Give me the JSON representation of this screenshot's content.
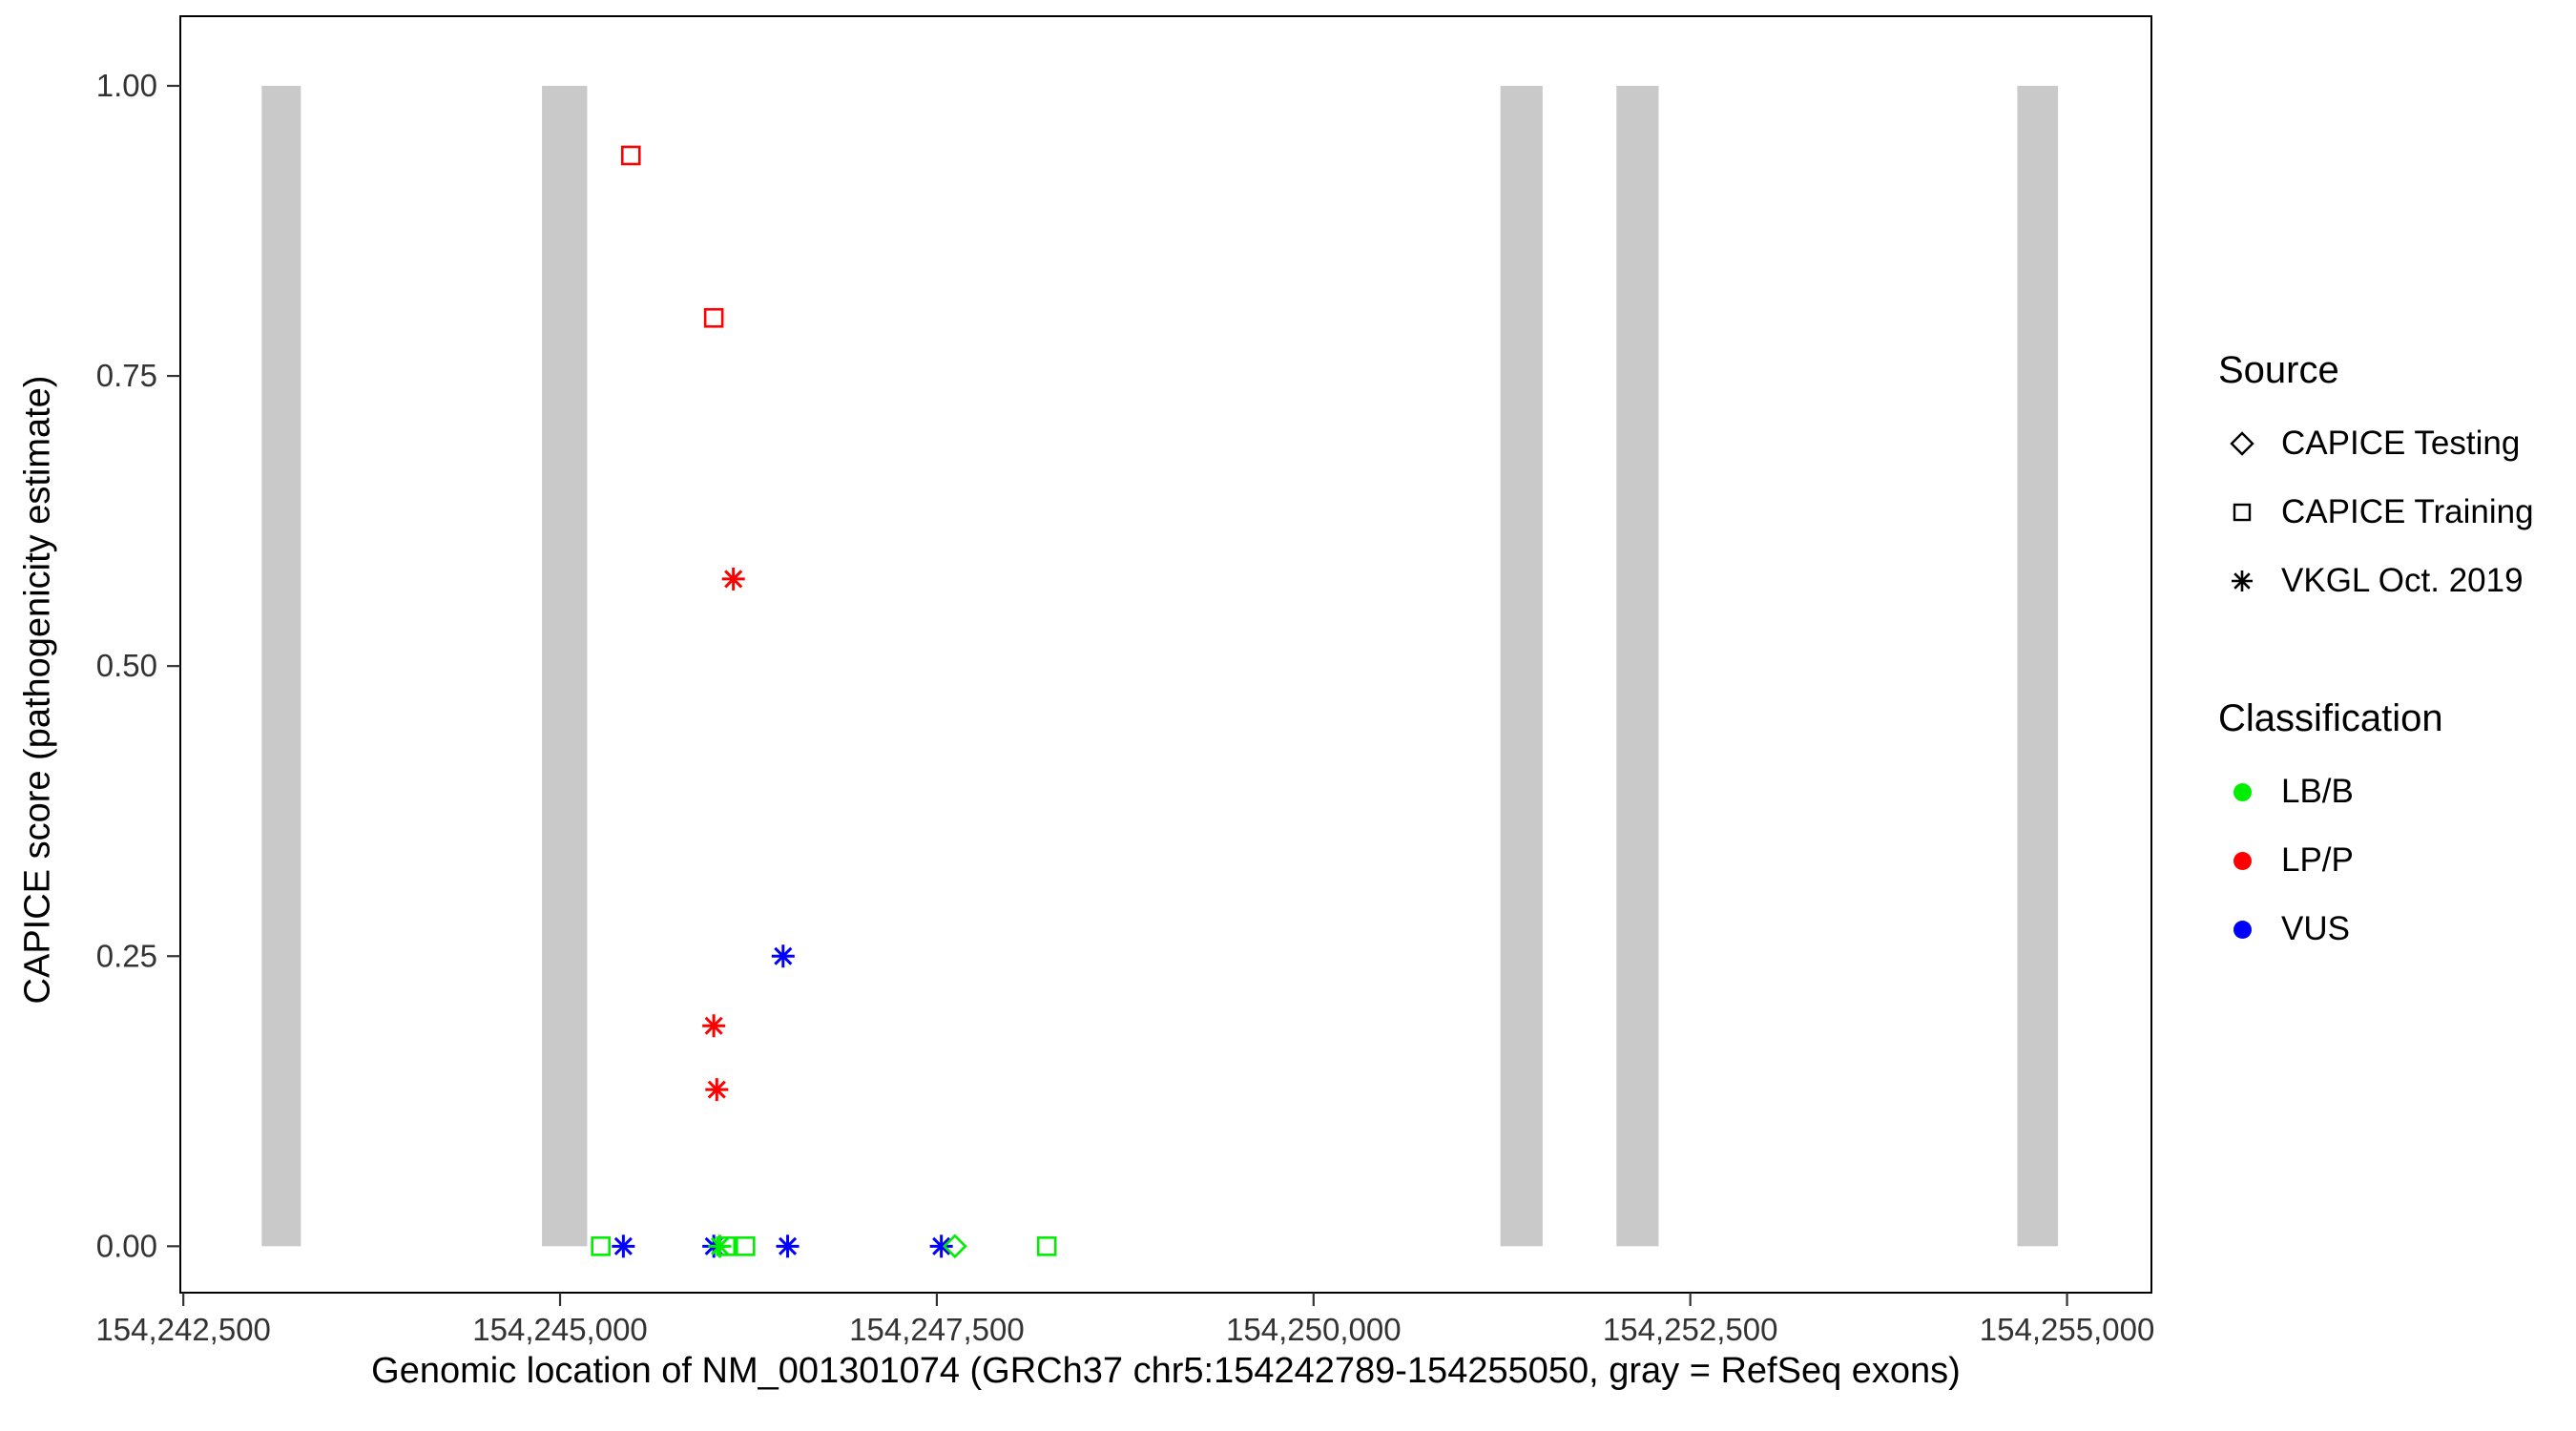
{
  "chart_data": {
    "type": "scatter",
    "title": "",
    "xlabel": "Genomic location of NM_001301074 (GRCh37 chr5:154242789-154255050, gray = RefSeq exons)",
    "ylabel": "CAPICE score (pathogenicity estimate)",
    "xlim": [
      154242480,
      154255560
    ],
    "ylim": [
      -0.04,
      1.06
    ],
    "grid": false,
    "legend_position": "right",
    "exon_color": "#C9C9C9",
    "panel_border_color": "#000000",
    "tick_label_color": "#333333",
    "x_ticks": [
      {
        "value": 154242500,
        "label": "154,242,500"
      },
      {
        "value": 154245000,
        "label": "154,245,000"
      },
      {
        "value": 154247500,
        "label": "154,247,500"
      },
      {
        "value": 154250000,
        "label": "154,250,000"
      },
      {
        "value": 154252500,
        "label": "154,252,500"
      },
      {
        "value": 154255000,
        "label": "154,255,000"
      }
    ],
    "y_ticks": [
      {
        "value": 0.0,
        "label": "0.00"
      },
      {
        "value": 0.25,
        "label": "0.25"
      },
      {
        "value": 0.5,
        "label": "0.50"
      },
      {
        "value": 0.75,
        "label": "0.75"
      },
      {
        "value": 1.0,
        "label": "1.00"
      }
    ],
    "exons": [
      {
        "start": 154243020,
        "end": 154243280
      },
      {
        "start": 154244880,
        "end": 154245180
      },
      {
        "start": 154251240,
        "end": 154251520
      },
      {
        "start": 154252010,
        "end": 154252290
      },
      {
        "start": 154254670,
        "end": 154254940
      }
    ],
    "points": [
      {
        "x": 154245470,
        "y": 0.94,
        "source": "CAPICE Training",
        "classification": "LP/P"
      },
      {
        "x": 154246020,
        "y": 0.8,
        "source": "CAPICE Training",
        "classification": "LP/P"
      },
      {
        "x": 154246150,
        "y": 0.575,
        "source": "VKGL Oct. 2019",
        "classification": "LP/P"
      },
      {
        "x": 154246480,
        "y": 0.25,
        "source": "VKGL Oct. 2019",
        "classification": "VUS"
      },
      {
        "x": 154246020,
        "y": 0.19,
        "source": "VKGL Oct. 2019",
        "classification": "LP/P"
      },
      {
        "x": 154246040,
        "y": 0.135,
        "source": "VKGL Oct. 2019",
        "classification": "LP/P"
      },
      {
        "x": 154245270,
        "y": 0.0,
        "source": "CAPICE Training",
        "classification": "LB/B"
      },
      {
        "x": 154245420,
        "y": 0.0,
        "source": "VKGL Oct. 2019",
        "classification": "VUS"
      },
      {
        "x": 154246020,
        "y": 0.0,
        "source": "VKGL Oct. 2019",
        "classification": "VUS"
      },
      {
        "x": 154246060,
        "y": 0.0,
        "source": "VKGL Oct. 2019",
        "classification": "LB/B"
      },
      {
        "x": 154246100,
        "y": 0.0,
        "source": "CAPICE Training",
        "classification": "LB/B"
      },
      {
        "x": 154246230,
        "y": 0.0,
        "source": "CAPICE Training",
        "classification": "LB/B"
      },
      {
        "x": 154246510,
        "y": 0.0,
        "source": "VKGL Oct. 2019",
        "classification": "VUS"
      },
      {
        "x": 154247530,
        "y": 0.0,
        "source": "VKGL Oct. 2019",
        "classification": "VUS"
      },
      {
        "x": 154247620,
        "y": 0.0,
        "source": "CAPICE Testing",
        "classification": "LB/B"
      },
      {
        "x": 154248230,
        "y": 0.0,
        "source": "CAPICE Training",
        "classification": "LB/B"
      }
    ],
    "legend_source": {
      "title": "Source",
      "items": [
        {
          "label": "CAPICE Testing",
          "shape": "diamond"
        },
        {
          "label": "CAPICE Training",
          "shape": "square"
        },
        {
          "label": "VKGL Oct. 2019",
          "shape": "asterisk"
        }
      ]
    },
    "legend_classification": {
      "title": "Classification",
      "items": [
        {
          "label": "LB/B",
          "color": "#00EE00"
        },
        {
          "label": "LP/P",
          "color": "#FF0000"
        },
        {
          "label": "VUS",
          "color": "#0000FF"
        }
      ]
    }
  }
}
